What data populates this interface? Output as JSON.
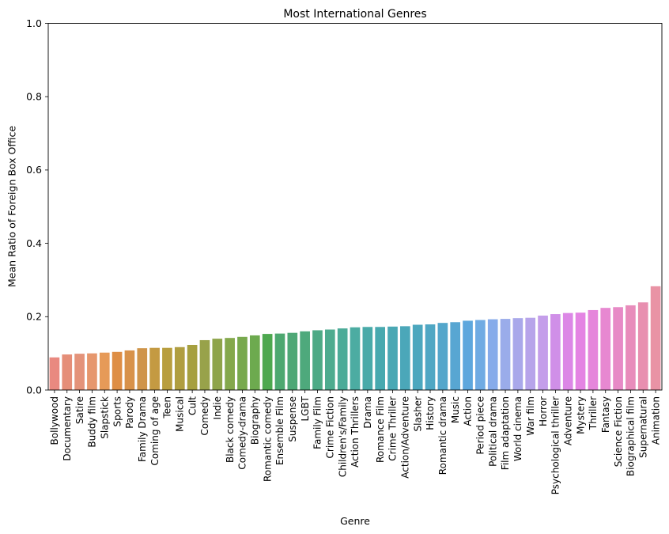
{
  "chart_data": {
    "type": "bar",
    "title": "Most International Genres",
    "xlabel": "Genre",
    "ylabel": "Mean Ratio of Foreign Box Office",
    "ylim": [
      0,
      1.0
    ],
    "yticks": [
      "0.0",
      "0.2",
      "0.4",
      "0.6",
      "0.8",
      "1.0"
    ],
    "grid": false,
    "categories": [
      "Bollywood",
      "Documentary",
      "Satire",
      "Buddy film",
      "Slapstick",
      "Sports",
      "Parody",
      "Family Drama",
      "Coming of age",
      "Teen",
      "Musical",
      "Cult",
      "Comedy",
      "Indie",
      "Black comedy",
      "Comedy-drama",
      "Biography",
      "Romantic comedy",
      "Ensemble Film",
      "Suspense",
      "LGBT",
      "Family Film",
      "Crime Fiction",
      "Children's/Family",
      "Action Thrillers",
      "Drama",
      "Romance Film",
      "Crime Thriller",
      "Action/Adventure",
      "Slasher",
      "History",
      "Romantic drama",
      "Music",
      "Action",
      "Period piece",
      "Political drama",
      "Film adaptation",
      "World cinema",
      "War film",
      "Horror",
      "Psychological thriller",
      "Adventure",
      "Mystery",
      "Thriller",
      "Fantasy",
      "Science Fiction",
      "Biographical film",
      "Supernatural",
      "Animation"
    ],
    "values": [
      0.089,
      0.097,
      0.099,
      0.1,
      0.102,
      0.104,
      0.108,
      0.114,
      0.115,
      0.115,
      0.117,
      0.123,
      0.136,
      0.14,
      0.142,
      0.145,
      0.149,
      0.153,
      0.154,
      0.156,
      0.16,
      0.163,
      0.165,
      0.168,
      0.171,
      0.172,
      0.172,
      0.173,
      0.174,
      0.178,
      0.179,
      0.183,
      0.185,
      0.189,
      0.191,
      0.193,
      0.194,
      0.196,
      0.197,
      0.203,
      0.207,
      0.21,
      0.211,
      0.218,
      0.224,
      0.226,
      0.231,
      0.239,
      0.283
    ],
    "colors": [
      "#e98980",
      "#e58e78",
      "#e4937a",
      "#e6976d",
      "#e69a58",
      "#de8e45",
      "#d8924a",
      "#cf944a",
      "#c49a42",
      "#b89e3f",
      "#b09e40",
      "#a6a03f",
      "#98a24a",
      "#8ea44a",
      "#84a84c",
      "#78a94e",
      "#6daa4f",
      "#4da84f",
      "#4da870",
      "#4ea876",
      "#4ea97c",
      "#4eaa86",
      "#4eab8f",
      "#4cab98",
      "#4caca2",
      "#49aaa9",
      "#48a9af",
      "#4aa8b4",
      "#4ba7b9",
      "#4ca7be",
      "#4fa7c4",
      "#53a6cb",
      "#58a6d2",
      "#5ea7dd",
      "#70abe3",
      "#86abea",
      "#9aacea",
      "#a9a8ea",
      "#b7a4ea",
      "#c49eea",
      "#d08fe8",
      "#dc87e6",
      "#e484e3",
      "#e586db",
      "#e788d1",
      "#e78ac6",
      "#e88cbb",
      "#e88fb0",
      "#e993a5"
    ]
  }
}
